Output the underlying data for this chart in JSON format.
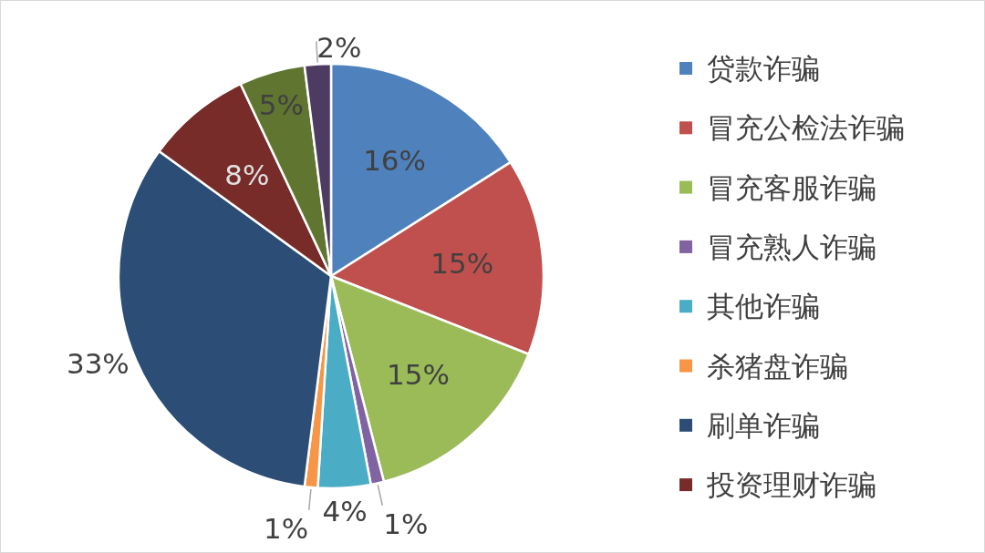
{
  "chart_data": {
    "type": "pie",
    "categories": [
      "贷款诈骗",
      "冒充公检法诈骗",
      "冒充客服诈骗",
      "冒充熟人诈骗",
      "其他诈骗",
      "杀猪盘诈骗",
      "刷单诈骗",
      "投资理财诈骗",
      null,
      null
    ],
    "values": [
      16,
      15,
      15,
      1,
      4,
      1,
      33,
      8,
      5,
      2
    ],
    "colors": [
      "#4f81bd",
      "#c0504d",
      "#9bbb59",
      "#8064a2",
      "#4bacc6",
      "#f79646",
      "#2c4d75",
      "#772c2a",
      "#5f7530",
      "#4d3b62"
    ],
    "value_labels": [
      "16%",
      "15%",
      "15%",
      "1%",
      "4%",
      "1%",
      "33%",
      "8%",
      "5%",
      "2%"
    ],
    "legend": "right"
  }
}
